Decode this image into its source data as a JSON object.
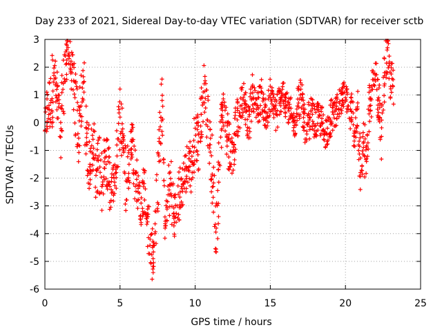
{
  "chart_data": {
    "type": "scatter",
    "title": "Day 233 of 2021, Sidereal Day-to-day VTEC variation (SDTVAR) for receiver sctb",
    "xlabel": "GPS time / hours",
    "ylabel": "SDTVAR / TECUs",
    "xlim": [
      0,
      25
    ],
    "ylim": [
      -6,
      3
    ],
    "xticks": [
      "0",
      "5",
      "10",
      "15",
      "20",
      "25"
    ],
    "yticks": [
      "-6",
      "-5",
      "-4",
      "-3",
      "-2",
      "-1",
      "0",
      "1",
      "2",
      "3"
    ],
    "grid": true,
    "marker": "+",
    "color": "#ff0000",
    "series": [
      {
        "name": "SDTVAR",
        "x": [
          0.0,
          0.2,
          0.4,
          0.6,
          0.8,
          1.0,
          1.2,
          1.4,
          1.6,
          1.8,
          2.0,
          2.2,
          2.4,
          2.6,
          2.8,
          3.0,
          3.2,
          3.4,
          3.6,
          3.8,
          4.0,
          4.2,
          4.4,
          4.6,
          4.8,
          5.0,
          5.2,
          5.4,
          5.6,
          5.8,
          6.0,
          6.2,
          6.4,
          6.6,
          6.8,
          7.0,
          7.2,
          7.4,
          7.6,
          7.8,
          8.0,
          8.2,
          8.4,
          8.6,
          8.8,
          9.0,
          9.2,
          9.4,
          9.6,
          9.8,
          10.0,
          10.2,
          10.4,
          10.6,
          10.8,
          11.0,
          11.2,
          11.4,
          11.6,
          11.8,
          12.0,
          12.2,
          12.4,
          12.6,
          12.8,
          13.0,
          13.2,
          13.4,
          13.6,
          13.8,
          14.0,
          14.2,
          14.4,
          14.6,
          14.8,
          15.0,
          15.2,
          15.4,
          15.6,
          15.8,
          16.0,
          16.2,
          16.4,
          16.6,
          16.8,
          17.0,
          17.2,
          17.4,
          17.6,
          17.8,
          18.0,
          18.2,
          18.4,
          18.6,
          18.8,
          19.0,
          19.2,
          19.4,
          19.6,
          19.8,
          20.0,
          20.2,
          20.4,
          20.6,
          20.8,
          21.0,
          21.2,
          21.4,
          21.6,
          21.8,
          22.0,
          22.2,
          22.4,
          22.6,
          22.8,
          23.0
        ],
        "y": [
          -0.3,
          0.5,
          0.8,
          1.7,
          0.9,
          -0.5,
          1.2,
          2.1,
          2.5,
          1.8,
          0.9,
          -0.4,
          0.6,
          1.1,
          -0.8,
          -1.5,
          -0.6,
          -1.9,
          -1.2,
          -2.3,
          -1.0,
          -1.4,
          -2.8,
          -2.0,
          -1.2,
          0.2,
          -0.9,
          -2.1,
          -1.5,
          -0.6,
          -1.8,
          -2.5,
          -2.9,
          -2.2,
          -3.3,
          -4.2,
          -4.9,
          -3.2,
          -1.4,
          0.8,
          -3.8,
          -2.6,
          -2.2,
          -3.4,
          -3.0,
          -2.5,
          -2.2,
          -1.7,
          -1.3,
          -1.8,
          -0.2,
          -0.7,
          0.3,
          1.4,
          0.1,
          -0.8,
          -2.3,
          -3.8,
          -1.5,
          0.6,
          0.0,
          -0.6,
          -1.5,
          -0.4,
          0.1,
          0.6,
          0.9,
          0.4,
          -0.2,
          1.3,
          0.7,
          0.5,
          1.1,
          0.4,
          0.2,
          0.9,
          0.6,
          0.3,
          0.7,
          1.2,
          0.6,
          0.5,
          0.2,
          -0.1,
          0.6,
          1.0,
          0.4,
          -0.6,
          0.1,
          0.3,
          -0.1,
          0.2,
          0.0,
          -0.4,
          -0.2,
          0.1,
          0.3,
          0.5,
          0.7,
          0.8,
          0.9,
          0.6,
          0.4,
          -0.3,
          0.5,
          -1.8,
          -0.9,
          -1.4,
          0.6,
          1.2,
          1.5,
          0.9,
          -0.5,
          1.8,
          2.7,
          1.3
        ],
        "spread": [
          0.9,
          1.1,
          1.4,
          1.0,
          1.2,
          1.3,
          1.2,
          0.9,
          0.8,
          1.0,
          1.4,
          1.3,
          1.1,
          1.3,
          1.2,
          1.0,
          1.1,
          1.0,
          1.2,
          0.9,
          1.1,
          1.0,
          0.9,
          1.0,
          1.1,
          1.2,
          1.3,
          1.0,
          0.9,
          1.1,
          1.0,
          0.8,
          0.9,
          1.0,
          1.1,
          1.0,
          0.7,
          1.3,
          1.4,
          0.8,
          0.6,
          1.1,
          1.2,
          0.9,
          1.0,
          0.8,
          0.9,
          0.8,
          0.9,
          1.0,
          1.0,
          1.2,
          1.0,
          0.9,
          1.1,
          1.4,
          1.3,
          1.5,
          1.0,
          0.9,
          1.0,
          1.1,
          1.1,
          1.0,
          0.8,
          0.6,
          0.6,
          0.7,
          0.8,
          0.6,
          0.6,
          0.7,
          0.5,
          0.7,
          0.8,
          0.6,
          0.7,
          0.8,
          0.6,
          0.5,
          0.6,
          0.7,
          0.5,
          0.6,
          0.8,
          0.7,
          0.6,
          0.8,
          0.7,
          0.6,
          0.6,
          0.6,
          0.7,
          0.6,
          0.6,
          0.7,
          0.6,
          0.5,
          0.5,
          0.6,
          0.5,
          0.7,
          0.9,
          0.8,
          1.2,
          0.8,
          1.1,
          0.9,
          0.8,
          0.8,
          0.9,
          1.1,
          1.0,
          0.9,
          0.6,
          0.9
        ]
      }
    ]
  }
}
